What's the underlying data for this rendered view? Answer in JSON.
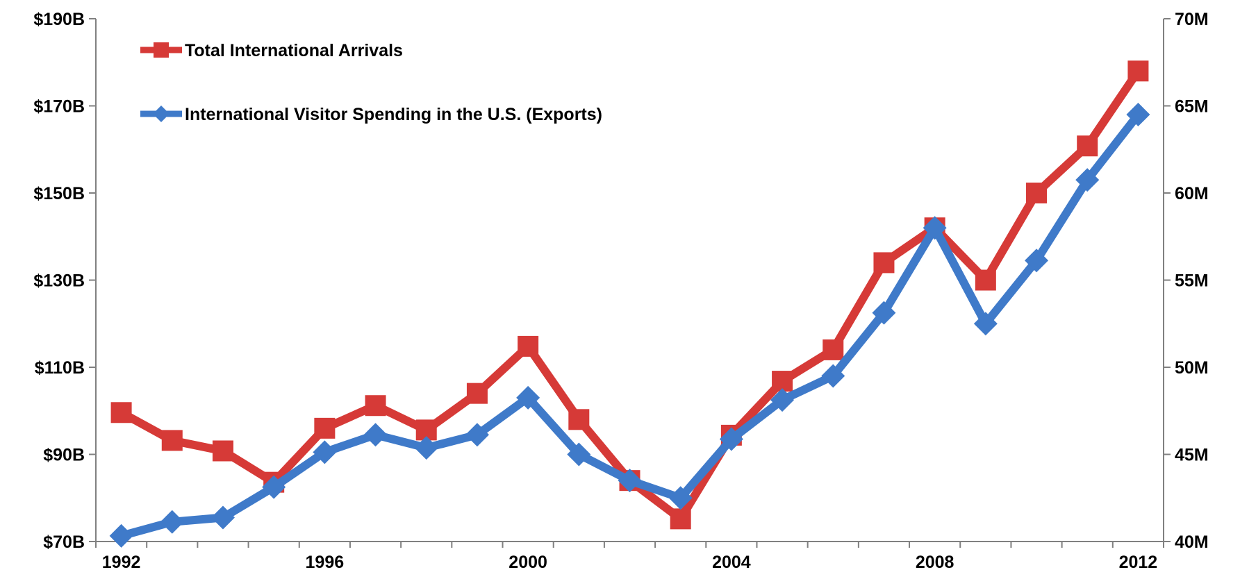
{
  "chart_data": {
    "type": "line",
    "x": [
      1992,
      1993,
      1994,
      1995,
      1996,
      1997,
      1998,
      1999,
      2000,
      2001,
      2002,
      2003,
      2004,
      2005,
      2006,
      2007,
      2008,
      2009,
      2010,
      2011,
      2012
    ],
    "x_tick_labels": [
      "1992",
      "1996",
      "2000",
      "2004",
      "2008",
      "2012"
    ],
    "xlim": [
      1991.5,
      2012.5
    ],
    "left_axis": {
      "ticks": [
        70,
        90,
        110,
        130,
        150,
        170,
        190
      ],
      "tick_labels": [
        "$70B",
        "$90B",
        "$110B",
        "$130B",
        "$150B",
        "$170B",
        "$190B"
      ],
      "ylim": [
        70,
        190
      ]
    },
    "right_axis": {
      "ticks": [
        40,
        45,
        50,
        55,
        60,
        65,
        70
      ],
      "tick_labels": [
        "40M",
        "45M",
        "50M",
        "55M",
        "60M",
        "65M",
        "70M"
      ],
      "ylim": [
        40,
        70
      ]
    },
    "series": [
      {
        "name": "Total International Arrivals",
        "color": "#d63a37",
        "marker": "square",
        "axis": "right",
        "values": [
          47.4,
          45.8,
          45.2,
          43.4,
          46.5,
          47.8,
          46.4,
          48.5,
          51.2,
          47.0,
          43.5,
          41.3,
          46.1,
          49.2,
          51.0,
          56.0,
          58.0,
          55.0,
          60.0,
          62.7,
          67.0
        ]
      },
      {
        "name": "International Visitor Spending in the U.S. (Exports)",
        "color": "#3f7ac9",
        "marker": "diamond",
        "axis": "left",
        "values": [
          71.3,
          74.5,
          75.5,
          82.5,
          90.5,
          94.5,
          91.5,
          94.5,
          103.0,
          90.0,
          84.0,
          80.0,
          93.5,
          102.5,
          108.0,
          122.5,
          142.0,
          120.0,
          134.5,
          153.0,
          168.0
        ]
      }
    ],
    "grid": false,
    "legend_position": "top-left"
  }
}
